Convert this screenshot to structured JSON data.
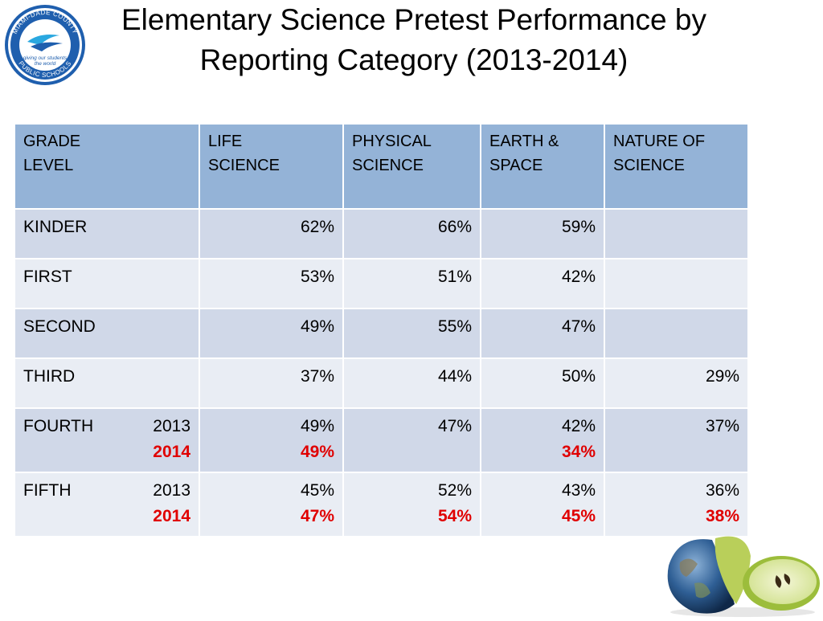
{
  "title": {
    "line1": "Elementary Science Pretest Performance by",
    "line2": "Reporting Category (2013-2014)"
  },
  "logo": {
    "top_text": "MIAMI-DADE COUNTY",
    "bottom_text": "PUBLIC SCHOOLS",
    "tagline_1": "giving our students",
    "tagline_2": "the world",
    "icon": "school-district-seal-icon"
  },
  "table": {
    "headers": [
      {
        "line1": "GRADE",
        "line2": "LEVEL"
      },
      {
        "line1": "LIFE",
        "line2": "SCIENCE"
      },
      {
        "line1": "PHYSICAL",
        "line2": "SCIENCE"
      },
      {
        "line1": "EARTH &",
        "line2": "SPACE"
      },
      {
        "line1": "NATURE OF",
        "line2": "SCIENCE"
      }
    ],
    "rows": [
      {
        "grade": "KINDER",
        "life": "62%",
        "physical": "66%",
        "earth": "59%",
        "nature": ""
      },
      {
        "grade": "FIRST",
        "life": "53%",
        "physical": "51%",
        "earth": "42%",
        "nature": ""
      },
      {
        "grade": "SECOND",
        "life": "49%",
        "physical": "55%",
        "earth": "47%",
        "nature": ""
      },
      {
        "grade": "THIRD",
        "life": "37%",
        "physical": "44%",
        "earth": "50%",
        "nature": "29%"
      },
      {
        "grade": "FOURTH",
        "year_a": "2013",
        "year_b": "2014",
        "life": "49%",
        "life_b": "49%",
        "physical": "47%",
        "physical_b": "",
        "earth": "42%",
        "earth_b": "34%",
        "nature": "37%",
        "nature_b": ""
      },
      {
        "grade": "FIFTH",
        "year_a": "2013",
        "year_b": "2014",
        "life": "45%",
        "life_b": "47%",
        "physical": "52%",
        "physical_b": "54%",
        "earth": "43%",
        "earth_b": "45%",
        "nature": "36%",
        "nature_b": "38%"
      }
    ]
  },
  "colors": {
    "header_bg": "#94b3d7",
    "row_dark": "#d0d8e8",
    "row_light": "#e9edf4",
    "highlight": "#e00000"
  },
  "illustration": {
    "icon": "earth-apple-icon"
  }
}
